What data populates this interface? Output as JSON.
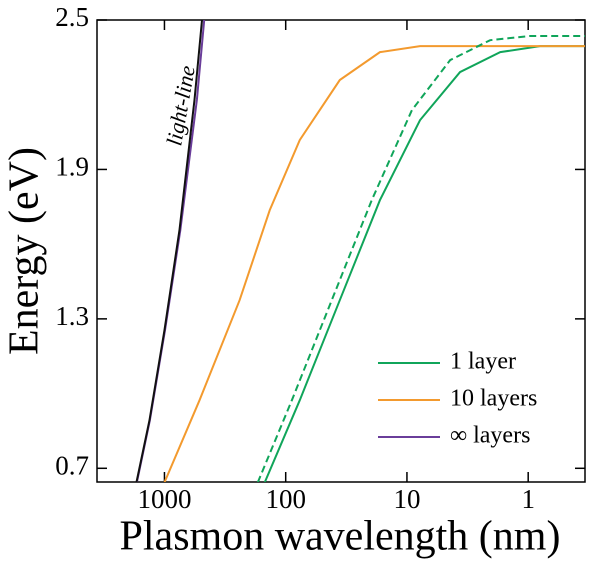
{
  "chart_data": {
    "type": "line",
    "xlabel": "Plasmon wavelength (nm)",
    "ylabel": "Energy (eV)",
    "xscale": "log",
    "xlim": [
      3600,
      0.34
    ],
    "ylim": [
      0.645,
      2.5
    ],
    "xticks": [
      1000,
      100,
      10,
      1
    ],
    "yticks": [
      0.7,
      1.3,
      1.9,
      2.5
    ],
    "annotation": "light-line",
    "legend": "lower right",
    "series": [
      {
        "name": "1 layer",
        "color": "#10a55a",
        "dash": false,
        "x": [
          149,
          76.6,
          35.8,
          16.7,
          7.8,
          3.65,
          1.7,
          0.8,
          0.34
        ],
        "values": [
          0.643,
          0.973,
          1.375,
          1.777,
          2.098,
          2.291,
          2.371,
          2.395,
          2.395
        ]
      },
      {
        "name": "10 layers",
        "color": "#f39a2e",
        "dash": false,
        "x": [
          1000,
          514,
          240,
          135.5,
          76.6,
          35.8,
          16.7,
          7.8,
          0.34
        ],
        "values": [
          0.643,
          0.973,
          1.375,
          1.736,
          2.018,
          2.259,
          2.371,
          2.395,
          2.395
        ]
      },
      {
        "name": "∞ layers",
        "color": "#6a3d9a",
        "dash": false,
        "x": [
          1690,
          1320,
          990,
          740,
          540,
          470
        ],
        "values": [
          0.643,
          0.892,
          1.254,
          1.656,
          2.18,
          2.5
        ]
      },
      {
        "name": null,
        "color": "#10a55a",
        "dash": true,
        "x": [
          170,
          89,
          41.7,
          19.5,
          9.1,
          4.4,
          2.06,
          0.96,
          0.34
        ],
        "values": [
          0.643,
          0.973,
          1.375,
          1.777,
          2.138,
          2.339,
          2.419,
          2.436,
          2.436
        ]
      },
      {
        "name": null,
        "color": "#111111",
        "dash": false,
        "x": [
          1703,
          1330,
          1000,
          752,
          565,
          490
        ],
        "values": [
          0.643,
          0.892,
          1.254,
          1.656,
          2.18,
          2.5
        ]
      }
    ]
  }
}
